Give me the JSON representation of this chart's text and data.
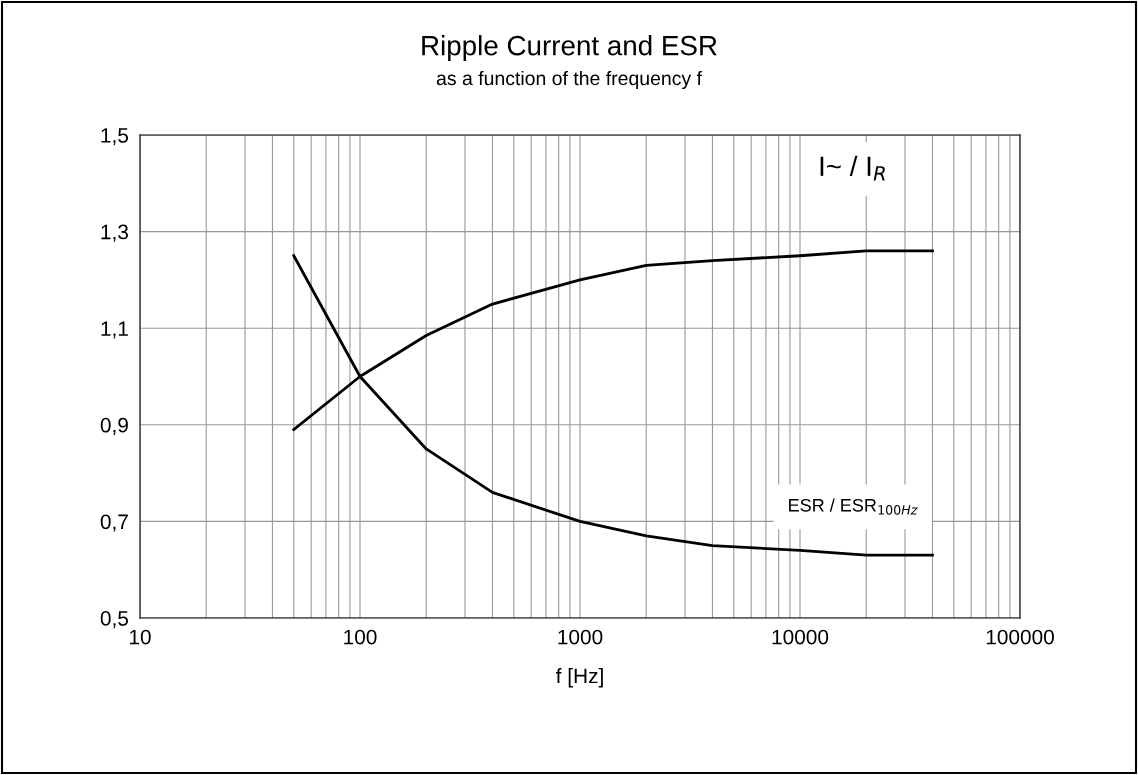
{
  "chart_data": {
    "type": "line",
    "title": "Ripple Current and ESR",
    "subtitle": "as a function of the frequency f",
    "xlabel": "f [Hz]",
    "x": [
      50,
      100,
      200,
      400,
      1000,
      2000,
      4000,
      10000,
      20000,
      40000
    ],
    "series": [
      {
        "name": "I~ / I$_{R}$",
        "color": "#000000",
        "values": [
          0.89,
          1.0,
          1.085,
          1.15,
          1.2,
          1.23,
          1.24,
          1.25,
          1.26,
          1.26
        ]
      },
      {
        "name": "ESR / ESR$_{100Hz}$",
        "color": "#000000",
        "values": [
          1.25,
          1.0,
          0.85,
          0.76,
          0.7,
          0.67,
          0.65,
          0.64,
          0.63,
          0.63
        ]
      }
    ],
    "log": "x",
    "xlim": [
      10,
      100000
    ],
    "xticks": [
      10,
      100,
      1000,
      10000,
      100000
    ],
    "ylim": [
      0.5,
      1.5
    ],
    "yticks": [
      {
        "value": 0.5,
        "label": "0,5"
      },
      {
        "value": 0.7,
        "label": "0,7"
      },
      {
        "value": 0.9,
        "label": "0,9"
      },
      {
        "value": 1.1,
        "label": "1,1"
      },
      {
        "value": 1.3,
        "label": "1,3"
      },
      {
        "value": 1.5,
        "label": "1,5"
      }
    ],
    "grid": true,
    "legend": false,
    "marker": "none",
    "line_style": "solid"
  }
}
